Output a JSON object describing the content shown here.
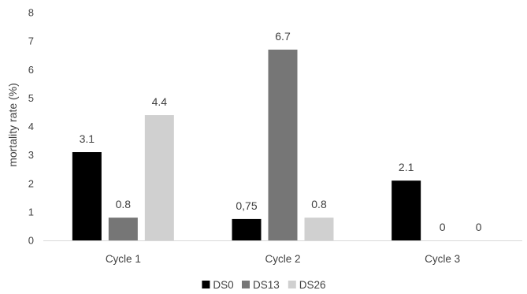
{
  "chart_data": {
    "type": "bar",
    "title": "",
    "xlabel": "",
    "ylabel": "mortality rate (%)",
    "ylim": [
      0,
      8
    ],
    "yticks": [
      0,
      1,
      2,
      3,
      4,
      5,
      6,
      7,
      8
    ],
    "grid": false,
    "legend_position": "bottom",
    "categories": [
      "Cycle 1",
      "Cycle 2",
      "Cycle 3"
    ],
    "series": [
      {
        "name": "DS0",
        "color": "#000000",
        "values": [
          3.1,
          0.75,
          2.1
        ],
        "labels": [
          "3.1",
          "0,75",
          "2.1"
        ]
      },
      {
        "name": "DS13",
        "color": "#767676",
        "values": [
          0.8,
          6.7,
          0
        ],
        "labels": [
          "0.8",
          "6.7",
          "0"
        ]
      },
      {
        "name": "DS26",
        "color": "#d0d0d0",
        "values": [
          4.4,
          0.8,
          0
        ],
        "labels": [
          "4.4",
          "0.8",
          "0"
        ]
      }
    ]
  }
}
